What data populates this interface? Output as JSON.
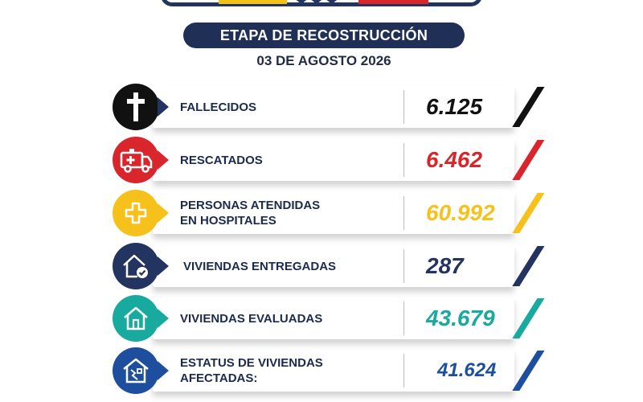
{
  "header": {
    "stage_title": "ETAPA DE RECOSTRUCCIÓN",
    "date": "03 DE AGOSTO 2026",
    "stars": "★★★"
  },
  "colors": {
    "navy": "#22345f",
    "black": "#111111",
    "red": "#d8262c",
    "yellow": "#f6c11b",
    "teal": "#18a99f",
    "blue": "#1e4f9e"
  },
  "rows": [
    {
      "label_lines": [
        "FALLECIDOS"
      ],
      "value": "6.125",
      "icon": "cross-icon",
      "color": "#111111"
    },
    {
      "label_lines": [
        "RESCATADOS"
      ],
      "value": "6.462",
      "icon": "ambulance-icon",
      "color": "#d8262c"
    },
    {
      "label_lines": [
        "PERSONAS ATENDIDAS",
        "EN HOSPITALES"
      ],
      "value": "60.992",
      "icon": "medical-plus-icon",
      "color": "#f6c11b"
    },
    {
      "label_lines": [
        "VIVIENDAS ENTREGADAS"
      ],
      "value": "287",
      "icon": "house-check-icon",
      "color": "#22345f"
    },
    {
      "label_lines": [
        "VIVIENDAS EVALUADAS"
      ],
      "value": "43.679",
      "icon": "house-icon",
      "color": "#18a99f"
    },
    {
      "label_lines": [
        "ESTATUS DE VIVIENDAS",
        "AFECTADAS:"
      ],
      "value": "41.624",
      "icon": "damaged-house-icon",
      "color": "#1e4f9e"
    }
  ]
}
